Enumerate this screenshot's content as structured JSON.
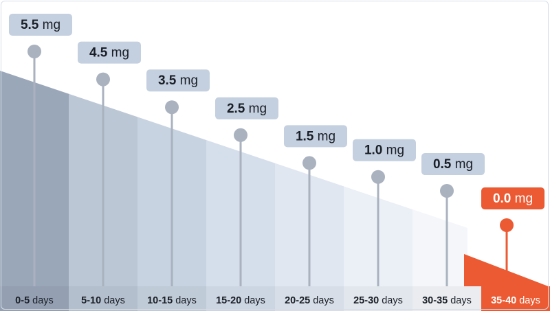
{
  "chart_data": {
    "type": "bar",
    "categories": [
      {
        "range": "0-5",
        "unit": "days"
      },
      {
        "range": "5-10",
        "unit": "days"
      },
      {
        "range": "10-15",
        "unit": "days"
      },
      {
        "range": "15-20",
        "unit": "days"
      },
      {
        "range": "20-25",
        "unit": "days"
      },
      {
        "range": "25-30",
        "unit": "days"
      },
      {
        "range": "30-35",
        "unit": "days"
      },
      {
        "range": "35-40",
        "unit": "days"
      }
    ],
    "values": [
      5.5,
      4.5,
      3.5,
      2.5,
      1.5,
      1.0,
      0.5,
      0.0
    ],
    "value_labels": [
      "5.5",
      "4.5",
      "3.5",
      "2.5",
      "1.5",
      "1.0",
      "0.5",
      "0.0"
    ],
    "value_unit": "mg",
    "highlight_index": 7,
    "title": "",
    "xlabel": "",
    "ylabel": "",
    "ylim": [
      0,
      5.5
    ],
    "grid": false,
    "legend": "none"
  },
  "colors": {
    "bands": [
      "#9aa7b9",
      "#bcc7d6",
      "#c8d3e1",
      "#d5deeb",
      "#e1e7f1",
      "#ebf0f7",
      "#f4f6fa"
    ],
    "ground_bar": "#e8ebef",
    "label_fill": "#c4d0df",
    "label_text": "#1a1f27",
    "marker": "#a9b2be",
    "highlight": "#eb5a32",
    "highlight_text": "#ffffff"
  }
}
